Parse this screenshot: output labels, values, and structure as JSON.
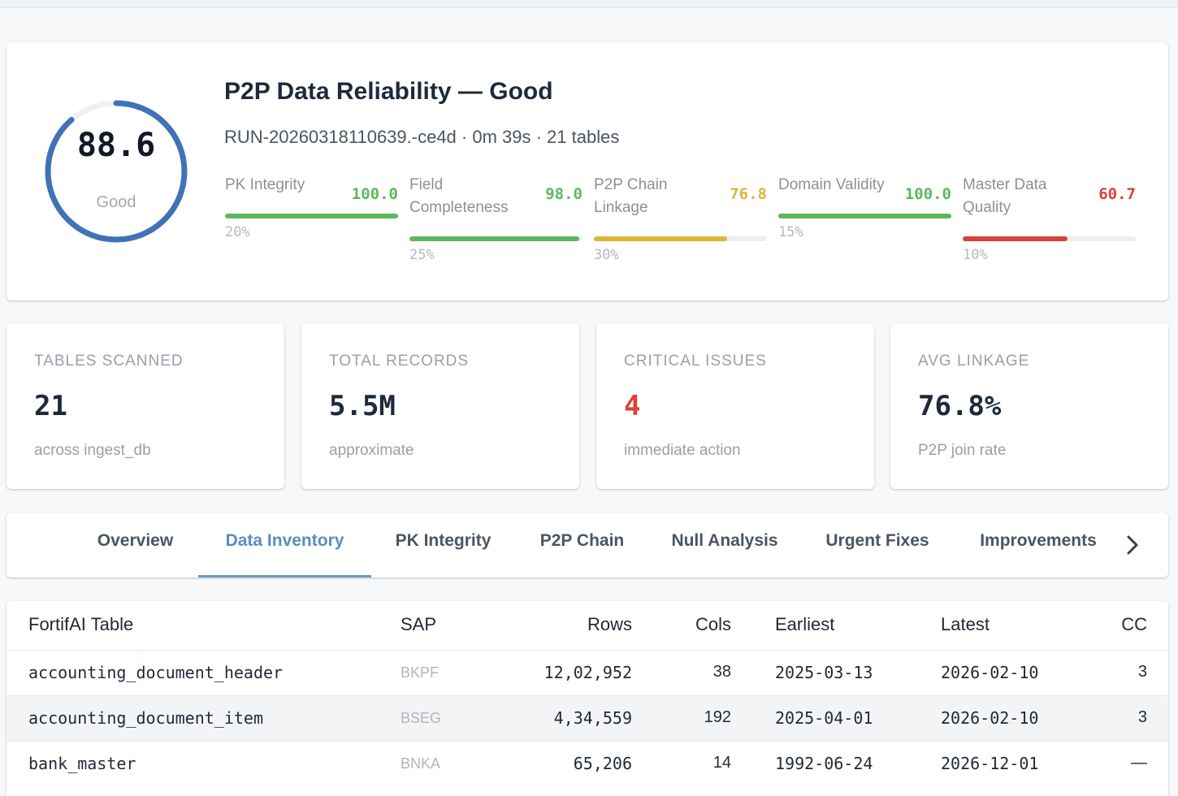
{
  "hero": {
    "score": "88.6",
    "score_fraction": 0.886,
    "score_label": "Good",
    "title": "P2P Data Reliability — Good",
    "subtitle": "RUN-20260318110639.-ce4d · 0m 39s · 21 tables",
    "gauge_color": "#3f73b6",
    "metrics": [
      {
        "label": "PK Integrity",
        "value": "100.0",
        "fill": 1.0,
        "weight": "20%",
        "color": "#5cb85c"
      },
      {
        "label": "Field Completeness",
        "value": "98.0",
        "fill": 0.98,
        "weight": "25%",
        "color": "#5cb85c"
      },
      {
        "label": "P2P Chain Linkage",
        "value": "76.8",
        "fill": 0.768,
        "weight": "30%",
        "color": "#e0b43a"
      },
      {
        "label": "Domain Validity",
        "value": "100.0",
        "fill": 1.0,
        "weight": "15%",
        "color": "#5cb85c"
      },
      {
        "label": "Master Data Quality",
        "value": "60.7",
        "fill": 0.607,
        "weight": "10%",
        "color": "#d9423a"
      }
    ]
  },
  "kpis": [
    {
      "label": "TABLES SCANNED",
      "value": "21",
      "sub": "across ingest_db",
      "color": "#1e2a3b"
    },
    {
      "label": "TOTAL RECORDS",
      "value": "5.5M",
      "sub": "approximate",
      "color": "#1e2a3b"
    },
    {
      "label": "CRITICAL ISSUES",
      "value": "4",
      "sub": "immediate action",
      "color": "#d9423a"
    },
    {
      "label": "AVG LINKAGE",
      "value": "76.8%",
      "sub": "P2P join rate",
      "color": "#1e2a3b"
    }
  ],
  "tabs": [
    "Overview",
    "Data Inventory",
    "PK Integrity",
    "P2P Chain",
    "Null Analysis",
    "Urgent Fixes",
    "Improvements"
  ],
  "active_tab": "Data Inventory",
  "table": {
    "headers": [
      "FortifAI Table",
      "SAP",
      "Rows",
      "Cols",
      "Earliest",
      "Latest",
      "CC"
    ],
    "rows": [
      [
        "accounting_document_header",
        "BKPF",
        "12,02,952",
        "38",
        "2025-03-13",
        "2026-02-10",
        "3"
      ],
      [
        "accounting_document_item",
        "BSEG",
        "4,34,559",
        "192",
        "2025-04-01",
        "2026-02-10",
        "3"
      ],
      [
        "bank_master",
        "BNKA",
        "65,206",
        "14",
        "1992-06-24",
        "2026-12-01",
        "—"
      ]
    ]
  }
}
